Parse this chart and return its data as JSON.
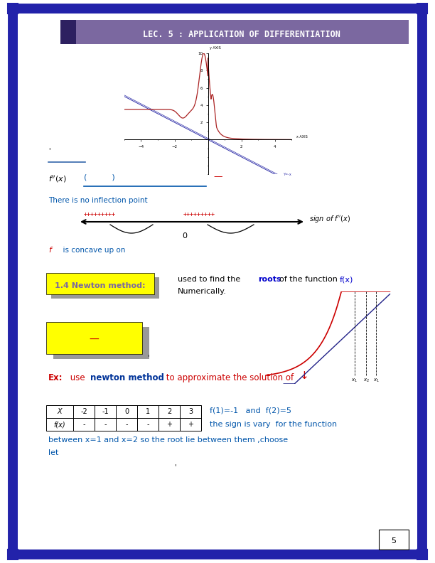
{
  "title": "LEC. 5 : APPLICATION OF DIFFERENTIATION",
  "title_bg": "#7B68A0",
  "title_fg": "white",
  "page_border_color": "#2222AA",
  "page_bg": "white",
  "graph1": {
    "xlim": [
      -5,
      5
    ],
    "ylim": [
      -4,
      10
    ],
    "xlabel": "x AXIS",
    "ylabel": "y AXIS",
    "line_color": "#3333AA",
    "curve_color": "#AA2222",
    "label_y_neg_x": "Y=-x"
  },
  "newton_box": {
    "bg_color": "#FFFF00",
    "shadow_color": "#888888",
    "label_color": "#7B68A0",
    "text": "1.4 Newton method:"
  },
  "roots_color": "#0000CC",
  "ex_color": "#CC0000",
  "newton_color": "#003399",
  "blue_text_color": "#0055AA",
  "table_headers": [
    "X",
    "-2",
    "-1",
    "0",
    "1",
    "2",
    "3"
  ],
  "table_row1": [
    "f(x)",
    "-",
    "-",
    "-",
    "-",
    "+",
    "+"
  ],
  "page_num": "5"
}
